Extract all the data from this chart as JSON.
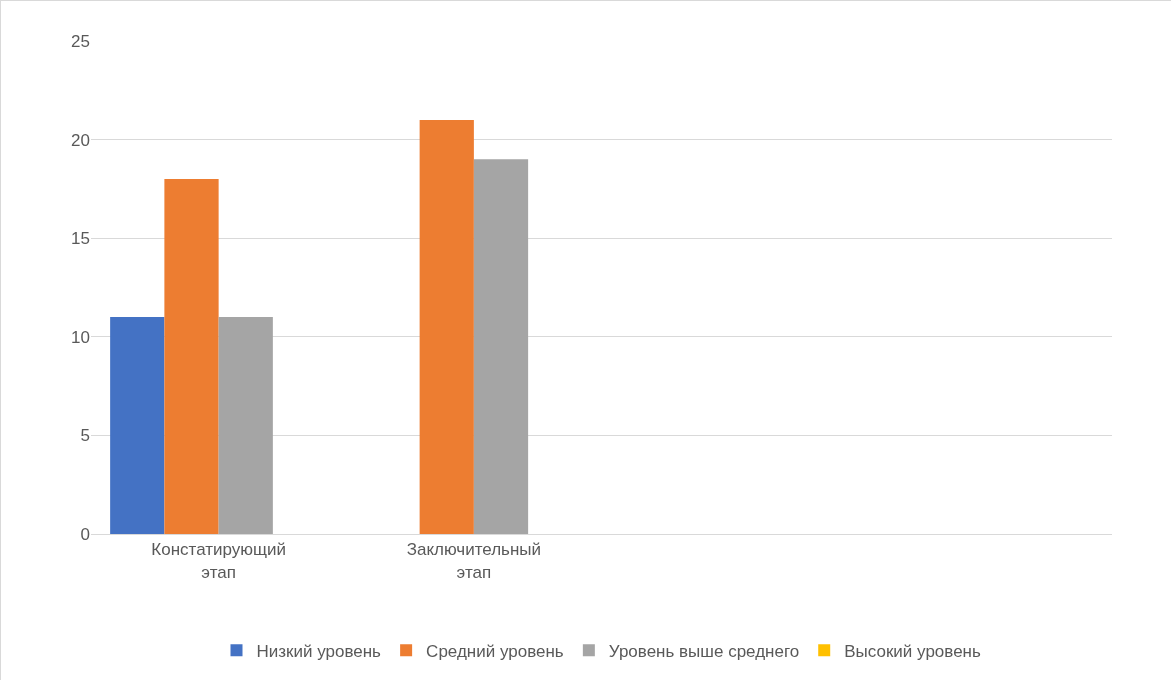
{
  "chart_data": {
    "type": "bar",
    "categories": [
      "Констатирующий этап",
      "Заключительный этап",
      null,
      null
    ],
    "series": [
      {
        "name": "Низкий уровень",
        "color": "#4472c4",
        "values": [
          11,
          0,
          null,
          null
        ]
      },
      {
        "name": "Средний уровень",
        "color": "#ed7d31",
        "values": [
          18,
          21,
          null,
          null
        ]
      },
      {
        "name": "Уровень выше среднего",
        "color": "#a5a5a5",
        "values": [
          11,
          19,
          null,
          null
        ]
      },
      {
        "name": "Высокий уровень",
        "color": "#ffc000",
        "values": [
          0,
          0,
          null,
          null
        ]
      }
    ],
    "ylim": [
      0,
      25
    ],
    "yticks": [
      0,
      5,
      10,
      15,
      20,
      25
    ],
    "grid": "y",
    "legend": "bottom"
  }
}
